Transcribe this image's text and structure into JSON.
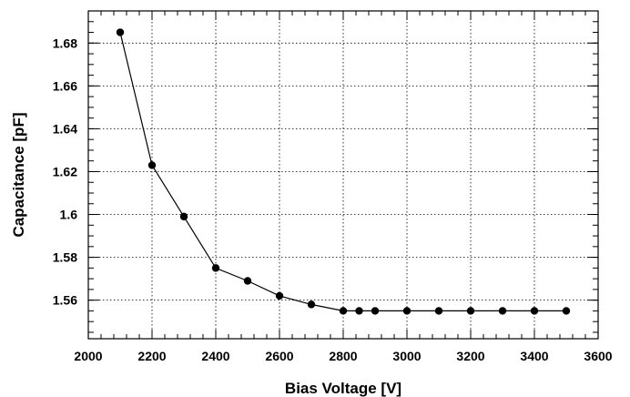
{
  "chart_data": {
    "type": "line",
    "xlabel": "Bias Voltage [V]",
    "ylabel": "Capacitance [pF]",
    "xlim": [
      2000,
      3600
    ],
    "ylim": [
      1.542,
      1.695
    ],
    "x_ticks": [
      2000,
      2200,
      2400,
      2600,
      2800,
      3000,
      3200,
      3400,
      3600
    ],
    "y_ticks": [
      1.56,
      1.58,
      1.6,
      1.62,
      1.64,
      1.66,
      1.68
    ],
    "y_tick_labels": [
      "1.56",
      "1.58",
      "1.6",
      "1.62",
      "1.64",
      "1.66",
      "1.68"
    ],
    "grid": true,
    "series": [
      {
        "color": "#000000",
        "x": [
          2100,
          2200,
          2300,
          2400,
          2500,
          2600,
          2700,
          2800,
          2850,
          2900,
          3000,
          3100,
          3200,
          3300,
          3400,
          3500
        ],
        "y": [
          1.685,
          1.623,
          1.599,
          1.575,
          1.569,
          1.562,
          1.558,
          1.555,
          1.555,
          1.555,
          1.555,
          1.555,
          1.555,
          1.555,
          1.555,
          1.555
        ]
      }
    ]
  }
}
